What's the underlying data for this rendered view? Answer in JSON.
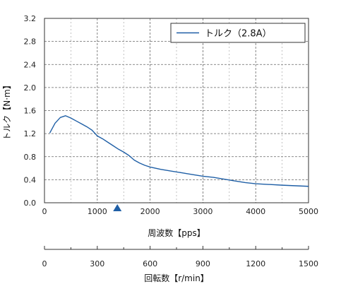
{
  "chart_data": {
    "type": "line",
    "ylabel": "トルク【N·m】",
    "xlabel": "周波数【pps】",
    "x2label": "回転数【r/min】",
    "xlim": [
      0,
      5000
    ],
    "ylim": [
      0,
      3.2
    ],
    "x2lim": [
      0,
      1500
    ],
    "grid": true,
    "legend_position": "top-right",
    "x_ticks": [
      "0",
      "1000",
      "2000",
      "3000",
      "4000",
      "5000"
    ],
    "y_ticks": [
      "0.0",
      "0.4",
      "0.8",
      "1.2",
      "1.6",
      "2.0",
      "2.4",
      "2.8",
      "3.2"
    ],
    "x2_ticks": [
      "0",
      "300",
      "600",
      "900",
      "1200",
      "1500"
    ],
    "series": [
      {
        "name": "トルク（2.8A）",
        "color": "#1f5fa6",
        "points": [
          [
            100,
            1.21
          ],
          [
            200,
            1.38
          ],
          [
            300,
            1.48
          ],
          [
            400,
            1.51
          ],
          [
            500,
            1.47
          ],
          [
            600,
            1.42
          ],
          [
            700,
            1.37
          ],
          [
            800,
            1.32
          ],
          [
            900,
            1.26
          ],
          [
            1000,
            1.16
          ],
          [
            1100,
            1.11
          ],
          [
            1200,
            1.05
          ],
          [
            1300,
            0.99
          ],
          [
            1400,
            0.93
          ],
          [
            1500,
            0.88
          ],
          [
            1600,
            0.82
          ],
          [
            1700,
            0.74
          ],
          [
            1800,
            0.69
          ],
          [
            1900,
            0.65
          ],
          [
            2000,
            0.62
          ],
          [
            2200,
            0.58
          ],
          [
            2400,
            0.55
          ],
          [
            2600,
            0.52
          ],
          [
            2800,
            0.49
          ],
          [
            3000,
            0.46
          ],
          [
            3200,
            0.44
          ],
          [
            3400,
            0.41
          ],
          [
            3600,
            0.38
          ],
          [
            3800,
            0.35
          ],
          [
            4000,
            0.33
          ],
          [
            4200,
            0.32
          ],
          [
            4500,
            0.305
          ],
          [
            5000,
            0.285
          ]
        ]
      }
    ],
    "marker": {
      "x": 1380,
      "shape": "triangle",
      "color": "#1f5fa6"
    }
  }
}
